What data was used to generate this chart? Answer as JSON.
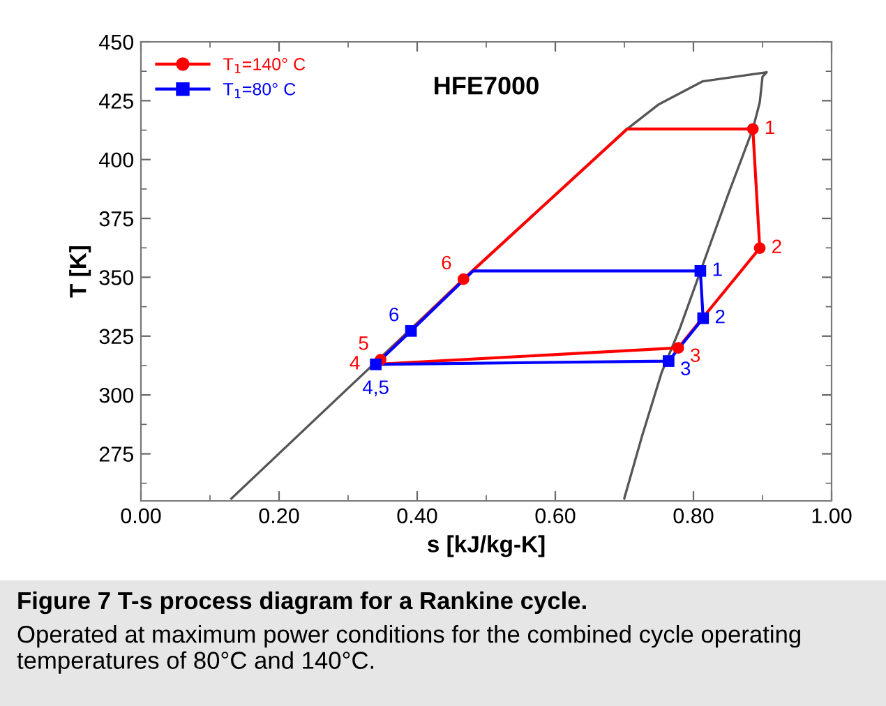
{
  "chart_data": {
    "type": "line",
    "title": "HFE7000",
    "xlabel": "s [kJ/kg-K]",
    "ylabel": "T [K]",
    "xlim": [
      0,
      1
    ],
    "xticks": [
      {
        "value": 0,
        "label": "0.00"
      },
      {
        "value": 0.2,
        "label": "0.20"
      },
      {
        "value": 0.4,
        "label": "0.40"
      },
      {
        "value": 0.6,
        "label": "0.60"
      },
      {
        "value": 0.8,
        "label": "0.80"
      },
      {
        "value": 1,
        "label": "1.00"
      }
    ],
    "ylim": [
      255,
      450
    ],
    "yticks": [
      275,
      300,
      325,
      350,
      375,
      400,
      425,
      450
    ],
    "grid": false,
    "legend": "top left",
    "series": [
      {
        "type": "line",
        "color": "#555555",
        "x": [
          0.131,
          0.467,
          0.704,
          0.75,
          0.813,
          0.906,
          0.9,
          0.896,
          0.886,
          0.85,
          0.78,
          0.754,
          0.725,
          0.7
        ],
        "values": [
          256,
          349.2,
          413,
          423.5,
          433.2,
          437.1,
          435.2,
          424.3,
          413,
          385,
          328,
          309.6,
          282,
          256.2
        ]
      },
      {
        "color": "#ff0000",
        "x": [
          0.886,
          0.896
        ],
        "values": [
          413,
          362.4
        ]
      },
      {
        "color": "#ff0000",
        "x": [
          0.896,
          0.778,
          0.34
        ],
        "values": [
          362.4,
          320,
          313
        ]
      },
      {
        "color": "#ff0000",
        "x": [
          0.34,
          0.347,
          0.467,
          0.704,
          0.886
        ],
        "values": [
          313,
          315,
          349.2,
          413,
          413
        ]
      },
      {
        "color": "#0000ff",
        "x": [
          0.81,
          0.814
        ],
        "values": [
          352.7,
          332.6
        ]
      },
      {
        "color": "#0000ff",
        "x": [
          0.814,
          0.764,
          0.34
        ],
        "values": [
          332.6,
          314.4,
          313
        ]
      },
      {
        "color": "#0000ff",
        "x": [
          0.34,
          0.391,
          0.481,
          0.81
        ],
        "values": [
          313,
          327.2,
          352.7,
          352.7
        ]
      },
      {
        "type": "scatter",
        "name": "T$_{1}$=140° C",
        "color": "#ff0000",
        "marker": "circle",
        "x": [
          0.886,
          0.896,
          0.778,
          0.347,
          0.467
        ],
        "values": [
          413,
          362.4,
          320,
          315,
          349.2
        ]
      },
      {
        "type": "scatter",
        "name": "T$_{1}$=80° C",
        "color": "#0000ff",
        "marker": "square",
        "x": [
          0.81,
          0.814,
          0.764,
          0.34,
          0.391
        ],
        "values": [
          352.7,
          332.6,
          314.4,
          313,
          327.2
        ]
      }
    ],
    "annotations": [
      "Figure 7 T-s process diagram for a Rankine cycle.",
      "Operated at maximum power conditions for the combined cycle operating temperatures of 80°C and 140°C.",
      {
        "text": "1",
        "x": 0.886,
        "y": 413
      },
      {
        "text": "2",
        "x": 0.896,
        "y": 362.4
      },
      {
        "text": "3",
        "x": 0.778,
        "y": 320
      },
      {
        "text": "4",
        "x": 0.34,
        "y": 313
      },
      {
        "text": "5",
        "x": 0.347,
        "y": 315
      },
      {
        "text": "6",
        "x": 0.467,
        "y": 349.2
      },
      {
        "text": "1",
        "x": 0.81,
        "y": 352.7
      },
      {
        "text": "2",
        "x": 0.814,
        "y": 332.6
      },
      {
        "text": "3",
        "x": 0.764,
        "y": 314.4
      },
      {
        "text": "4,5",
        "x": 0.34,
        "y": 313
      },
      {
        "text": "6",
        "x": 0.391,
        "y": 327.2
      }
    ]
  }
}
